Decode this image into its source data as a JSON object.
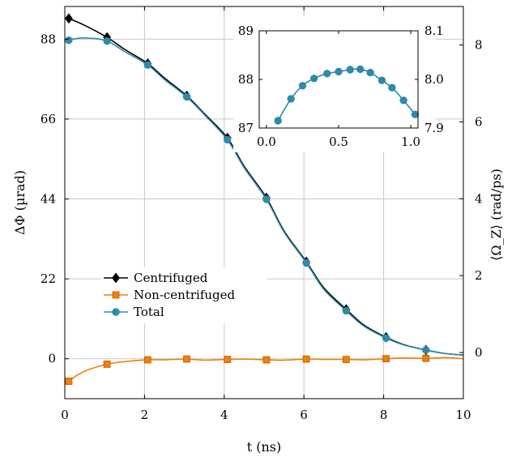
{
  "chart_data": {
    "type": "line",
    "xlabel": "t (ns)",
    "ylabel_left": "ΔΦ (µrad)",
    "ylabel_right": "⟨Ω_Z⟩ (rad/ps)",
    "xlim": [
      0,
      10
    ],
    "ylim_left": [
      -11,
      97
    ],
    "ylim_right": [
      -1.2,
      9.0
    ],
    "xticks": [
      "0",
      "2",
      "4",
      "6",
      "8",
      "10"
    ],
    "yticks_left": [
      "0",
      "22",
      "44",
      "66",
      "88"
    ],
    "yticks_right": [
      "0",
      "2",
      "4",
      "6",
      "8"
    ],
    "grid": true,
    "legend_position": "center-left",
    "series": [
      {
        "name": "Centrifuged",
        "color": "#000000",
        "marker": "diamond",
        "x": [
          0.1,
          1.06,
          2.08,
          3.06,
          4.08,
          5.06,
          6.06,
          7.06,
          8.06,
          9.06
        ],
        "y": [
          93.7,
          88.5,
          81.3,
          72.4,
          60.8,
          44.3,
          26.7,
          13.6,
          5.9,
          2.4
        ],
        "line_x": [
          0.1,
          0.5,
          1.06,
          1.5,
          2.08,
          2.5,
          3.06,
          3.5,
          4.08,
          4.5,
          5.06,
          5.5,
          6.06,
          6.5,
          7.06,
          7.5,
          8.06,
          8.5,
          9.06,
          9.5,
          10.0
        ],
        "line_y": [
          93.7,
          91.8,
          88.5,
          85.2,
          81.3,
          77.3,
          72.4,
          67.5,
          60.8,
          53.0,
          44.3,
          35.2,
          26.7,
          19.5,
          13.6,
          9.3,
          5.9,
          3.9,
          2.4,
          1.5,
          1.0
        ]
      },
      {
        "name": "Non-centrifuged",
        "color": "#f0800a",
        "marker": "square",
        "x": [
          0.1,
          1.06,
          2.08,
          3.06,
          4.08,
          5.06,
          6.06,
          7.06,
          8.06,
          9.06
        ],
        "y": [
          -6.2,
          -1.5,
          -0.3,
          -0.1,
          -0.2,
          -0.3,
          -0.1,
          -0.2,
          0.0,
          0.1
        ],
        "line_x": [
          0.1,
          0.3,
          0.6,
          1.06,
          1.5,
          2.08,
          2.5,
          3.06,
          3.5,
          4.08,
          4.5,
          5.06,
          5.5,
          6.06,
          6.5,
          7.06,
          7.5,
          8.06,
          8.5,
          9.06,
          9.6,
          10.0
        ],
        "line_y": [
          -6.2,
          -4.6,
          -3.0,
          -1.5,
          -0.8,
          -0.3,
          -0.3,
          -0.1,
          -0.4,
          -0.2,
          -0.1,
          -0.3,
          -0.4,
          -0.1,
          -0.2,
          -0.2,
          -0.3,
          0.0,
          0.2,
          0.1,
          0.3,
          0.0
        ]
      },
      {
        "name": "Total",
        "color": "#2d8ba8",
        "marker": "circle",
        "x": [
          0.1,
          1.06,
          2.08,
          3.06,
          4.08,
          5.06,
          6.06,
          7.06,
          8.06,
          9.06
        ],
        "y": [
          87.7,
          87.5,
          80.9,
          72.1,
          60.3,
          43.9,
          26.4,
          13.2,
          5.7,
          2.4
        ],
        "line_x": [
          0.1,
          0.3,
          0.6,
          1.06,
          1.5,
          2.08,
          2.5,
          3.06,
          3.5,
          4.08,
          4.5,
          5.06,
          5.5,
          6.06,
          6.5,
          7.06,
          7.5,
          8.06,
          8.5,
          9.06,
          9.5,
          10.0
        ],
        "line_y": [
          87.7,
          88.2,
          88.3,
          87.5,
          84.6,
          80.9,
          76.9,
          72.1,
          67.2,
          60.3,
          52.6,
          43.9,
          34.9,
          26.4,
          19.1,
          13.2,
          9.0,
          5.7,
          3.8,
          2.4,
          1.5,
          1.0
        ]
      }
    ],
    "inset": {
      "type": "line",
      "xlim": [
        -0.05,
        1.05
      ],
      "ylim_left": [
        87,
        89
      ],
      "ylim_right": [
        7.9,
        8.1
      ],
      "xticks": [
        "0.0",
        "0.5",
        "1.0"
      ],
      "yticks_left": [
        "87",
        "88",
        "89"
      ],
      "yticks_right": [
        "7.9",
        "8.0",
        "8.1"
      ],
      "series": [
        {
          "name": "",
          "color": "#2d8ba8",
          "marker": "circle",
          "x": [
            0.08,
            0.17,
            0.25,
            0.33,
            0.42,
            0.5,
            0.58,
            0.65,
            0.72,
            0.8,
            0.87,
            0.95,
            1.03
          ],
          "y": [
            87.15,
            87.6,
            87.87,
            88.02,
            88.12,
            88.16,
            88.2,
            88.21,
            88.14,
            87.98,
            87.83,
            87.57,
            87.28
          ]
        }
      ]
    }
  }
}
